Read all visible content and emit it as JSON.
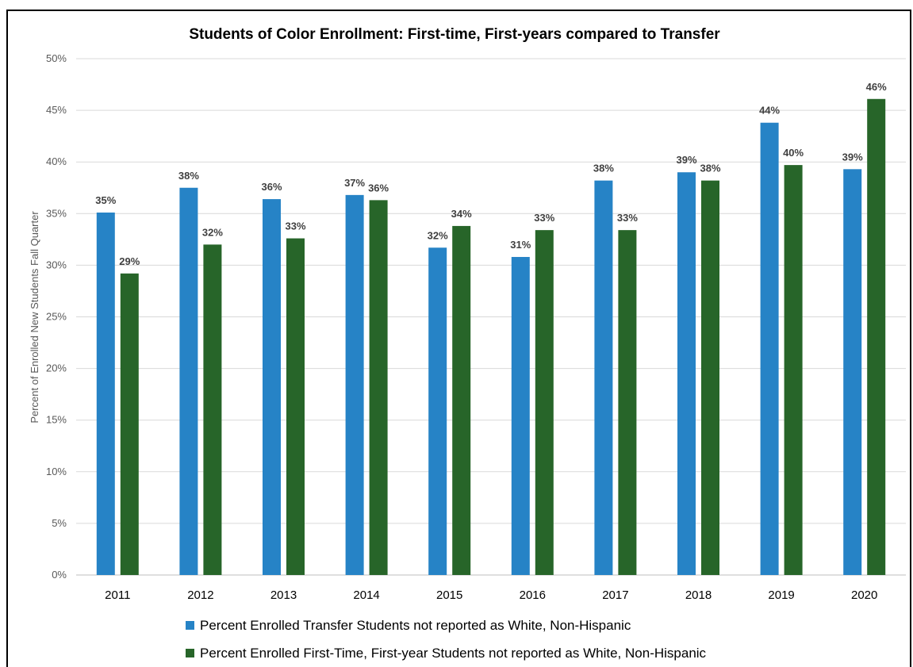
{
  "chart_data": {
    "type": "bar",
    "title": "Students of Color Enrollment: First-time, First-years compared to Transfer",
    "ylabel": "Percent of Enrolled New Students Fall Quarter",
    "xlabel": "",
    "categories": [
      "2011",
      "2012",
      "2013",
      "2014",
      "2015",
      "2016",
      "2017",
      "2018",
      "2019",
      "2020"
    ],
    "ylim": [
      0,
      50
    ],
    "yticks": [
      0,
      5,
      10,
      15,
      20,
      25,
      30,
      35,
      40,
      45,
      50
    ],
    "ytick_labels": [
      "0%",
      "5%",
      "10%",
      "15%",
      "20%",
      "25%",
      "30%",
      "35%",
      "40%",
      "45%",
      "50%"
    ],
    "grid": true,
    "legend_position": "bottom",
    "series": [
      {
        "name": "Percent Enrolled Transfer Students not reported as White, Non-Hispanic",
        "color": "#2683C6",
        "values": [
          35.1,
          37.5,
          36.4,
          36.8,
          31.7,
          30.8,
          38.2,
          39.0,
          43.8,
          39.3
        ],
        "labels": [
          "35%",
          "38%",
          "36%",
          "37%",
          "32%",
          "31%",
          "38%",
          "39%",
          "44%",
          "39%"
        ]
      },
      {
        "name": "Percent Enrolled First-Time, First-year Students not reported as White, Non-Hispanic",
        "color": "#276529",
        "values": [
          29.2,
          32.0,
          32.6,
          36.3,
          33.8,
          33.4,
          33.4,
          38.2,
          39.7,
          46.1
        ],
        "labels": [
          "29%",
          "32%",
          "33%",
          "36%",
          "34%",
          "33%",
          "33%",
          "38%",
          "40%",
          "46%"
        ]
      }
    ]
  }
}
